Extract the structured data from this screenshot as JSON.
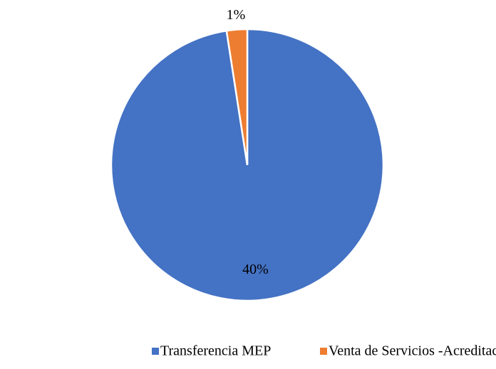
{
  "chart_data": {
    "type": "pie",
    "categories": [
      "Transferencia MEP",
      "Venta de Servicios -Acreditación"
    ],
    "values": [
      40,
      1
    ],
    "value_labels": [
      "40%",
      "1%"
    ],
    "colors": [
      "#4472c4",
      "#ed7d31"
    ],
    "legend": "bottom"
  }
}
